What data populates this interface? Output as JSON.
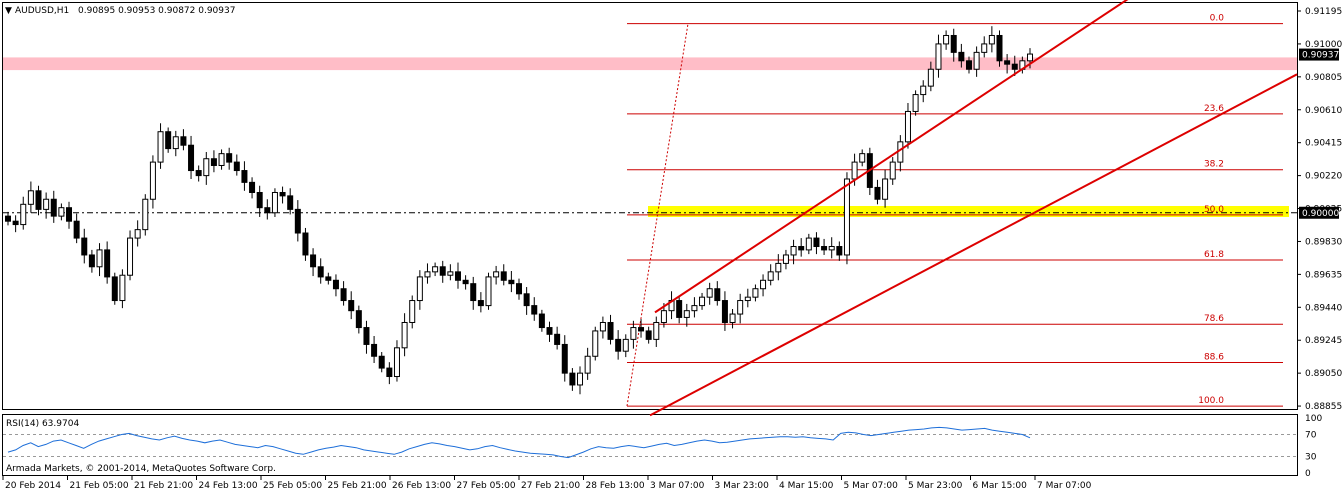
{
  "chart_data": {
    "type": "candlestick",
    "header": {
      "symbol": "AUDUSD,H1",
      "ohlc": "0.90895 0.90953 0.90872 0.90937",
      "arrow": "▼"
    },
    "price_axis": {
      "ylim": [
        0.88885,
        0.91195
      ],
      "ticks": [
        "0.91195",
        "0.91000",
        "0.90805",
        "0.90610",
        "0.90415",
        "0.90220",
        "0.90025",
        "0.89830",
        "0.89635",
        "0.89440",
        "0.89245",
        "0.89050",
        "0.88855"
      ],
      "current_price": "0.90937",
      "marked_price": "0.90000"
    },
    "time_axis": {
      "labels": [
        "20 Feb 2014",
        "21 Feb 05:00",
        "21 Feb 21:00",
        "24 Feb 13:00",
        "25 Feb 05:00",
        "25 Feb 21:00",
        "26 Feb 13:00",
        "27 Feb 05:00",
        "27 Feb 21:00",
        "28 Feb 13:00",
        "3 Mar 07:00",
        "3 Mar 23:00",
        "4 Mar 15:00",
        "5 Mar 07:00",
        "5 Mar 23:00",
        "6 Mar 15:00",
        "7 Mar 07:00"
      ]
    },
    "fibonacci": {
      "high": 0.9112,
      "low": 0.88855,
      "levels": [
        "0.0",
        "23.6",
        "38.2",
        "50.0",
        "61.8",
        "78.6",
        "88.6",
        "100.0"
      ]
    },
    "zones": {
      "resistance_zone": [
        0.90845,
        0.9092
      ],
      "dash_line": 0.9,
      "yellow_zone": [
        0.89975,
        0.9004
      ]
    },
    "channel": {
      "upper": [
        [
          0.8941,
          0.9147
        ]
      ],
      "lower": [
        [
          0.888,
          0.9082
        ]
      ]
    },
    "close_path": [
      0.8995,
      0.8993,
      0.9005,
      0.9013,
      0.9002,
      0.9008,
      0.8998,
      0.9003,
      0.8995,
      0.8985,
      0.8975,
      0.8968,
      0.8978,
      0.8962,
      0.8948,
      0.8963,
      0.8985,
      0.899,
      0.9008,
      0.903,
      0.9048,
      0.9038,
      0.9045,
      0.904,
      0.9025,
      0.9022,
      0.9032,
      0.9028,
      0.9035,
      0.903,
      0.9025,
      0.9018,
      0.9012,
      0.9003,
      0.9,
      0.9012,
      0.901,
      0.9002,
      0.8988,
      0.8975,
      0.8968,
      0.8962,
      0.896,
      0.8955,
      0.8948,
      0.8942,
      0.8932,
      0.8922,
      0.8915,
      0.8908,
      0.8903,
      0.892,
      0.8935,
      0.8948,
      0.8962,
      0.8965,
      0.8968,
      0.8963,
      0.8965,
      0.896,
      0.8958,
      0.8948,
      0.8945,
      0.8962,
      0.8965,
      0.896,
      0.8958,
      0.8952,
      0.8945,
      0.894,
      0.8932,
      0.8928,
      0.8922,
      0.8905,
      0.8898,
      0.8905,
      0.8915,
      0.893,
      0.8935,
      0.8925,
      0.8918,
      0.8925,
      0.8932,
      0.893,
      0.8925,
      0.8935,
      0.8942,
      0.8948,
      0.8938,
      0.8942,
      0.8945,
      0.895,
      0.8955,
      0.8948,
      0.8935,
      0.894,
      0.8948,
      0.895,
      0.8955,
      0.896,
      0.8965,
      0.897,
      0.8975,
      0.898,
      0.8978,
      0.8985,
      0.898,
      0.8978,
      0.898,
      0.8975,
      0.902,
      0.903,
      0.9035,
      0.9015,
      0.9008,
      0.902,
      0.903,
      0.9042,
      0.906,
      0.907,
      0.9075,
      0.9085,
      0.91,
      0.9105,
      0.9095,
      0.909,
      0.9085,
      0.9095,
      0.91,
      0.9105,
      0.909,
      0.9088,
      0.9085,
      0.909,
      0.9094
    ],
    "rsi": {
      "label": "RSI(14) 63.9704",
      "ticks": [
        "100",
        "70",
        "30",
        "0"
      ],
      "levels": [
        70,
        30
      ],
      "values": [
        38,
        42,
        50,
        55,
        48,
        52,
        58,
        60,
        55,
        50,
        45,
        52,
        58,
        62,
        66,
        70,
        72,
        68,
        65,
        62,
        60,
        64,
        67,
        63,
        60,
        58,
        55,
        58,
        60,
        56,
        52,
        50,
        48,
        46,
        50,
        48,
        44,
        40,
        36,
        34,
        38,
        42,
        45,
        47,
        50,
        48,
        46,
        42,
        40,
        38,
        36,
        34,
        38,
        44,
        48,
        52,
        55,
        53,
        50,
        48,
        45,
        42,
        44,
        48,
        50,
        46,
        43,
        40,
        38,
        36,
        35,
        34,
        33,
        30,
        28,
        33,
        38,
        44,
        48,
        46,
        45,
        48,
        50,
        48,
        46,
        49,
        52,
        54,
        50,
        52,
        55,
        58,
        60,
        58,
        55,
        56,
        58,
        60,
        62,
        63,
        64,
        65,
        66,
        66,
        65,
        66,
        64,
        63,
        62,
        60,
        72,
        74,
        73,
        70,
        68,
        70,
        72,
        74,
        76,
        78,
        79,
        80,
        82,
        83,
        82,
        80,
        78,
        79,
        80,
        81,
        78,
        76,
        74,
        72,
        70,
        64
      ]
    },
    "footer": "Armada Markets, © 2001-2014, MetaQuotes Software Corp."
  }
}
